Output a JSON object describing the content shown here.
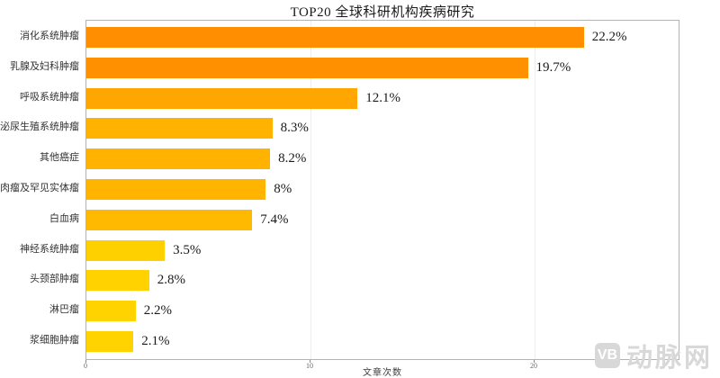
{
  "chart_data": {
    "type": "bar",
    "orientation": "horizontal",
    "title": "TOP20 全球科研机构疾病研究",
    "xlabel": "文章次数",
    "ylabel": "",
    "xlim": [
      0,
      26.5
    ],
    "xticks": [
      0,
      10,
      20
    ],
    "grid": "vertical-faint",
    "legend": "none",
    "categories": [
      "消化系统肿瘤",
      "乳腺及妇科肿瘤",
      "呼吸系统肿瘤",
      "泌尿生殖系统肿瘤",
      "其他癌症",
      "肉瘤及罕见实体瘤",
      "白血病",
      "神经系统肿瘤",
      "头颈部肿瘤",
      "淋巴瘤",
      "浆细胞肿瘤"
    ],
    "values": [
      22.2,
      19.7,
      12.1,
      8.3,
      8.2,
      8,
      7.4,
      3.5,
      2.8,
      2.2,
      2.1
    ],
    "value_labels": [
      "22.2%",
      "19.7%",
      "12.1%",
      "8.3%",
      "8.2%",
      "8%",
      "7.4%",
      "3.5%",
      "2.8%",
      "2.2%",
      "2.1%"
    ],
    "bar_colors": [
      "#FF8E00",
      "#FF9000",
      "#FFA600",
      "#FFB300",
      "#FFB300",
      "#FFB500",
      "#FFB900",
      "#FFD000",
      "#FFD200",
      "#FFD300",
      "#FFD300"
    ]
  },
  "watermark": {
    "logo": "VB",
    "text": "动脉网",
    "color": "#d8d8d8"
  }
}
